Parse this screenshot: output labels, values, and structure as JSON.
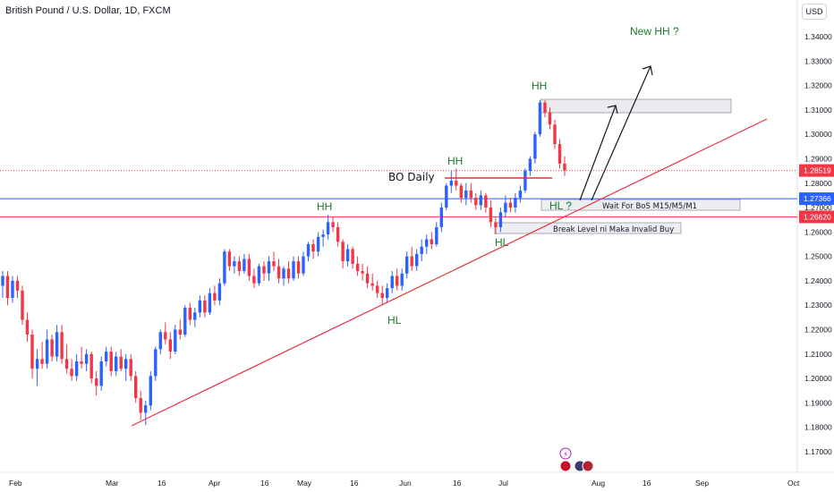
{
  "header": {
    "title": "British Pound / U.S. Dollar, 1D, FXCM",
    "currency_button": "USD"
  },
  "chart_data": {
    "type": "candlestick",
    "title": "British Pound / U.S. Dollar, 1D, FXCM",
    "y_axis": {
      "position": "right",
      "ylim": [
        1.165,
        1.348
      ],
      "ticks": [
        1.17,
        1.18,
        1.19,
        1.2,
        1.21,
        1.22,
        1.23,
        1.24,
        1.25,
        1.26,
        1.27,
        1.28,
        1.29,
        1.3,
        1.31,
        1.32,
        1.33,
        1.34
      ],
      "tick_labels": [
        "1.17000",
        "1.18000",
        "1.19000",
        "1.20000",
        "1.21000",
        "1.22000",
        "1.23000",
        "1.24000",
        "1.25000",
        "1.26000",
        "1.27000",
        "1.28000",
        "1.29000",
        "1.30000",
        "1.31000",
        "1.32000",
        "1.33000",
        "1.34000"
      ]
    },
    "x_axis": {
      "labels": [
        "Feb",
        "Mar",
        "16",
        "Apr",
        "16",
        "May",
        "16",
        "Jun",
        "16",
        "Jul",
        "Aug",
        "16",
        "Sep",
        "Oct"
      ]
    },
    "grid": false,
    "price_labels": [
      {
        "value": 1.28519,
        "text": "1.28519",
        "color": "#f23645"
      },
      {
        "value": 1.27366,
        "text": "1.27366",
        "color": "#2962ff"
      },
      {
        "value": 1.2662,
        "text": "1.26620",
        "color": "#f23645"
      }
    ],
    "horizontal_lines": [
      {
        "value": 1.27366,
        "color": "#2962ff",
        "style": "solid"
      },
      {
        "value": 1.2662,
        "color": "#f23645",
        "style": "solid"
      },
      {
        "value": 1.28519,
        "color": "#f23645",
        "style": "dotted"
      }
    ],
    "annotations": {
      "hh_labels": [
        "HH",
        "HH",
        "HH"
      ],
      "hl_labels": [
        "HL",
        "HL"
      ],
      "hl_question": "HL ?",
      "new_hh": "New HH ?",
      "bo_daily": "BO Daily",
      "wait_box": "Wait For BoS M15/M5/M1",
      "break_box": "Break Level ni Maka Invalid Buy"
    },
    "candles": [
      {
        "o": 1.238,
        "h": 1.244,
        "l": 1.233,
        "c": 1.242
      },
      {
        "o": 1.242,
        "h": 1.244,
        "l": 1.23,
        "c": 1.233
      },
      {
        "o": 1.233,
        "h": 1.242,
        "l": 1.231,
        "c": 1.24
      },
      {
        "o": 1.24,
        "h": 1.242,
        "l": 1.233,
        "c": 1.236
      },
      {
        "o": 1.236,
        "h": 1.238,
        "l": 1.222,
        "c": 1.224
      },
      {
        "o": 1.224,
        "h": 1.227,
        "l": 1.215,
        "c": 1.218
      },
      {
        "o": 1.218,
        "h": 1.22,
        "l": 1.2,
        "c": 1.204
      },
      {
        "o": 1.204,
        "h": 1.212,
        "l": 1.197,
        "c": 1.208
      },
      {
        "o": 1.208,
        "h": 1.215,
        "l": 1.204,
        "c": 1.206
      },
      {
        "o": 1.206,
        "h": 1.22,
        "l": 1.204,
        "c": 1.216
      },
      {
        "o": 1.216,
        "h": 1.218,
        "l": 1.207,
        "c": 1.209
      },
      {
        "o": 1.209,
        "h": 1.222,
        "l": 1.207,
        "c": 1.219
      },
      {
        "o": 1.219,
        "h": 1.222,
        "l": 1.206,
        "c": 1.208
      },
      {
        "o": 1.208,
        "h": 1.214,
        "l": 1.202,
        "c": 1.204
      },
      {
        "o": 1.204,
        "h": 1.208,
        "l": 1.199,
        "c": 1.201
      },
      {
        "o": 1.201,
        "h": 1.21,
        "l": 1.199,
        "c": 1.207
      },
      {
        "o": 1.207,
        "h": 1.213,
        "l": 1.204,
        "c": 1.206
      },
      {
        "o": 1.206,
        "h": 1.212,
        "l": 1.203,
        "c": 1.21
      },
      {
        "o": 1.21,
        "h": 1.211,
        "l": 1.198,
        "c": 1.2
      },
      {
        "o": 1.2,
        "h": 1.203,
        "l": 1.193,
        "c": 1.197
      },
      {
        "o": 1.197,
        "h": 1.209,
        "l": 1.195,
        "c": 1.207
      },
      {
        "o": 1.207,
        "h": 1.213,
        "l": 1.205,
        "c": 1.211
      },
      {
        "o": 1.211,
        "h": 1.213,
        "l": 1.201,
        "c": 1.203
      },
      {
        "o": 1.203,
        "h": 1.211,
        "l": 1.201,
        "c": 1.209
      },
      {
        "o": 1.209,
        "h": 1.212,
        "l": 1.203,
        "c": 1.204
      },
      {
        "o": 1.204,
        "h": 1.21,
        "l": 1.199,
        "c": 1.208
      },
      {
        "o": 1.208,
        "h": 1.21,
        "l": 1.199,
        "c": 1.201
      },
      {
        "o": 1.201,
        "h": 1.203,
        "l": 1.19,
        "c": 1.192
      },
      {
        "o": 1.192,
        "h": 1.195,
        "l": 1.183,
        "c": 1.186
      },
      {
        "o": 1.186,
        "h": 1.191,
        "l": 1.181,
        "c": 1.189
      },
      {
        "o": 1.189,
        "h": 1.203,
        "l": 1.187,
        "c": 1.201
      },
      {
        "o": 1.201,
        "h": 1.213,
        "l": 1.199,
        "c": 1.212
      },
      {
        "o": 1.212,
        "h": 1.22,
        "l": 1.21,
        "c": 1.219
      },
      {
        "o": 1.219,
        "h": 1.223,
        "l": 1.214,
        "c": 1.216
      },
      {
        "o": 1.216,
        "h": 1.219,
        "l": 1.208,
        "c": 1.211
      },
      {
        "o": 1.211,
        "h": 1.222,
        "l": 1.21,
        "c": 1.22
      },
      {
        "o": 1.22,
        "h": 1.224,
        "l": 1.216,
        "c": 1.218
      },
      {
        "o": 1.218,
        "h": 1.23,
        "l": 1.217,
        "c": 1.229
      },
      {
        "o": 1.229,
        "h": 1.231,
        "l": 1.222,
        "c": 1.224
      },
      {
        "o": 1.224,
        "h": 1.229,
        "l": 1.221,
        "c": 1.227
      },
      {
        "o": 1.227,
        "h": 1.234,
        "l": 1.225,
        "c": 1.232
      },
      {
        "o": 1.232,
        "h": 1.234,
        "l": 1.225,
        "c": 1.227
      },
      {
        "o": 1.227,
        "h": 1.237,
        "l": 1.226,
        "c": 1.235
      },
      {
        "o": 1.235,
        "h": 1.238,
        "l": 1.23,
        "c": 1.232
      },
      {
        "o": 1.232,
        "h": 1.241,
        "l": 1.23,
        "c": 1.239
      },
      {
        "o": 1.239,
        "h": 1.253,
        "l": 1.238,
        "c": 1.252
      },
      {
        "o": 1.252,
        "h": 1.253,
        "l": 1.244,
        "c": 1.246
      },
      {
        "o": 1.246,
        "h": 1.25,
        "l": 1.243,
        "c": 1.248
      },
      {
        "o": 1.248,
        "h": 1.25,
        "l": 1.242,
        "c": 1.244
      },
      {
        "o": 1.244,
        "h": 1.251,
        "l": 1.243,
        "c": 1.249
      },
      {
        "o": 1.249,
        "h": 1.251,
        "l": 1.24,
        "c": 1.242
      },
      {
        "o": 1.242,
        "h": 1.245,
        "l": 1.237,
        "c": 1.239
      },
      {
        "o": 1.239,
        "h": 1.247,
        "l": 1.238,
        "c": 1.246
      },
      {
        "o": 1.246,
        "h": 1.248,
        "l": 1.24,
        "c": 1.243
      },
      {
        "o": 1.243,
        "h": 1.25,
        "l": 1.24,
        "c": 1.248
      },
      {
        "o": 1.248,
        "h": 1.252,
        "l": 1.244,
        "c": 1.246
      },
      {
        "o": 1.246,
        "h": 1.249,
        "l": 1.239,
        "c": 1.241
      },
      {
        "o": 1.241,
        "h": 1.246,
        "l": 1.238,
        "c": 1.245
      },
      {
        "o": 1.245,
        "h": 1.248,
        "l": 1.239,
        "c": 1.241
      },
      {
        "o": 1.241,
        "h": 1.25,
        "l": 1.24,
        "c": 1.248
      },
      {
        "o": 1.248,
        "h": 1.25,
        "l": 1.241,
        "c": 1.243
      },
      {
        "o": 1.243,
        "h": 1.252,
        "l": 1.242,
        "c": 1.25
      },
      {
        "o": 1.25,
        "h": 1.256,
        "l": 1.248,
        "c": 1.255
      },
      {
        "o": 1.255,
        "h": 1.257,
        "l": 1.249,
        "c": 1.252
      },
      {
        "o": 1.252,
        "h": 1.26,
        "l": 1.25,
        "c": 1.258
      },
      {
        "o": 1.258,
        "h": 1.261,
        "l": 1.254,
        "c": 1.259
      },
      {
        "o": 1.259,
        "h": 1.267,
        "l": 1.257,
        "c": 1.264
      },
      {
        "o": 1.264,
        "h": 1.266,
        "l": 1.26,
        "c": 1.262
      },
      {
        "o": 1.262,
        "h": 1.264,
        "l": 1.254,
        "c": 1.256
      },
      {
        "o": 1.256,
        "h": 1.257,
        "l": 1.245,
        "c": 1.248
      },
      {
        "o": 1.248,
        "h": 1.255,
        "l": 1.246,
        "c": 1.253
      },
      {
        "o": 1.253,
        "h": 1.254,
        "l": 1.245,
        "c": 1.247
      },
      {
        "o": 1.247,
        "h": 1.25,
        "l": 1.242,
        "c": 1.244
      },
      {
        "o": 1.244,
        "h": 1.247,
        "l": 1.24,
        "c": 1.243
      },
      {
        "o": 1.243,
        "h": 1.246,
        "l": 1.237,
        "c": 1.239
      },
      {
        "o": 1.239,
        "h": 1.243,
        "l": 1.236,
        "c": 1.238
      },
      {
        "o": 1.238,
        "h": 1.24,
        "l": 1.233,
        "c": 1.235
      },
      {
        "o": 1.235,
        "h": 1.238,
        "l": 1.23,
        "c": 1.233
      },
      {
        "o": 1.233,
        "h": 1.239,
        "l": 1.231,
        "c": 1.237
      },
      {
        "o": 1.237,
        "h": 1.244,
        "l": 1.235,
        "c": 1.242
      },
      {
        "o": 1.242,
        "h": 1.245,
        "l": 1.236,
        "c": 1.238
      },
      {
        "o": 1.238,
        "h": 1.245,
        "l": 1.236,
        "c": 1.243
      },
      {
        "o": 1.243,
        "h": 1.252,
        "l": 1.241,
        "c": 1.25
      },
      {
        "o": 1.25,
        "h": 1.254,
        "l": 1.244,
        "c": 1.246
      },
      {
        "o": 1.246,
        "h": 1.253,
        "l": 1.244,
        "c": 1.251
      },
      {
        "o": 1.251,
        "h": 1.257,
        "l": 1.248,
        "c": 1.254
      },
      {
        "o": 1.254,
        "h": 1.259,
        "l": 1.251,
        "c": 1.257
      },
      {
        "o": 1.257,
        "h": 1.26,
        "l": 1.253,
        "c": 1.255
      },
      {
        "o": 1.255,
        "h": 1.264,
        "l": 1.254,
        "c": 1.262
      },
      {
        "o": 1.262,
        "h": 1.272,
        "l": 1.26,
        "c": 1.27
      },
      {
        "o": 1.27,
        "h": 1.28,
        "l": 1.269,
        "c": 1.279
      },
      {
        "o": 1.279,
        "h": 1.285,
        "l": 1.276,
        "c": 1.281
      },
      {
        "o": 1.281,
        "h": 1.286,
        "l": 1.277,
        "c": 1.279
      },
      {
        "o": 1.279,
        "h": 1.28,
        "l": 1.272,
        "c": 1.274
      },
      {
        "o": 1.274,
        "h": 1.28,
        "l": 1.271,
        "c": 1.277
      },
      {
        "o": 1.277,
        "h": 1.28,
        "l": 1.272,
        "c": 1.274
      },
      {
        "o": 1.274,
        "h": 1.276,
        "l": 1.269,
        "c": 1.271
      },
      {
        "o": 1.271,
        "h": 1.277,
        "l": 1.269,
        "c": 1.275
      },
      {
        "o": 1.275,
        "h": 1.276,
        "l": 1.268,
        "c": 1.27
      },
      {
        "o": 1.27,
        "h": 1.273,
        "l": 1.262,
        "c": 1.264
      },
      {
        "o": 1.264,
        "h": 1.266,
        "l": 1.259,
        "c": 1.262
      },
      {
        "o": 1.262,
        "h": 1.27,
        "l": 1.26,
        "c": 1.268
      },
      {
        "o": 1.268,
        "h": 1.275,
        "l": 1.266,
        "c": 1.272
      },
      {
        "o": 1.272,
        "h": 1.274,
        "l": 1.268,
        "c": 1.27
      },
      {
        "o": 1.27,
        "h": 1.276,
        "l": 1.268,
        "c": 1.274
      },
      {
        "o": 1.274,
        "h": 1.279,
        "l": 1.272,
        "c": 1.277
      },
      {
        "o": 1.277,
        "h": 1.286,
        "l": 1.276,
        "c": 1.285
      },
      {
        "o": 1.285,
        "h": 1.291,
        "l": 1.283,
        "c": 1.29
      },
      {
        "o": 1.29,
        "h": 1.301,
        "l": 1.288,
        "c": 1.3
      },
      {
        "o": 1.3,
        "h": 1.314,
        "l": 1.299,
        "c": 1.313
      },
      {
        "o": 1.313,
        "h": 1.314,
        "l": 1.307,
        "c": 1.309
      },
      {
        "o": 1.309,
        "h": 1.311,
        "l": 1.302,
        "c": 1.304
      },
      {
        "o": 1.304,
        "h": 1.306,
        "l": 1.294,
        "c": 1.296
      },
      {
        "o": 1.296,
        "h": 1.298,
        "l": 1.286,
        "c": 1.288
      },
      {
        "o": 1.288,
        "h": 1.291,
        "l": 1.283,
        "c": 1.2852
      }
    ],
    "up_color": "#2962ff",
    "down_color": "#f23645"
  }
}
